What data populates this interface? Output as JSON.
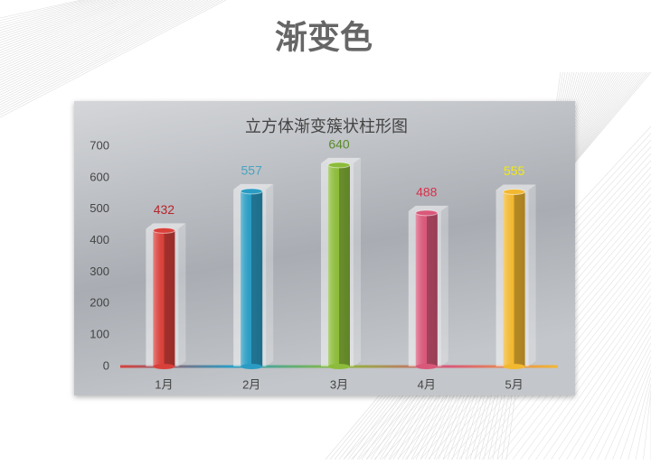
{
  "page_title": "渐变色",
  "chart_data": {
    "type": "bar",
    "title": "立方体渐变簇状柱形图",
    "categories": [
      "1月",
      "2月",
      "3月",
      "4月",
      "5月"
    ],
    "values": [
      432,
      557,
      640,
      488,
      555
    ],
    "colors": [
      "#d9403a",
      "#2a9cc4",
      "#8cbc3a",
      "#d9587a",
      "#f2b830"
    ],
    "label_colors": [
      "#b8242a",
      "#4aa3c0",
      "#5a8a2a",
      "#d9304a",
      "#f2ea10"
    ],
    "ylim": [
      0,
      700
    ],
    "yticks": [
      0,
      100,
      200,
      300,
      400,
      500,
      600,
      700
    ],
    "grid": false
  }
}
